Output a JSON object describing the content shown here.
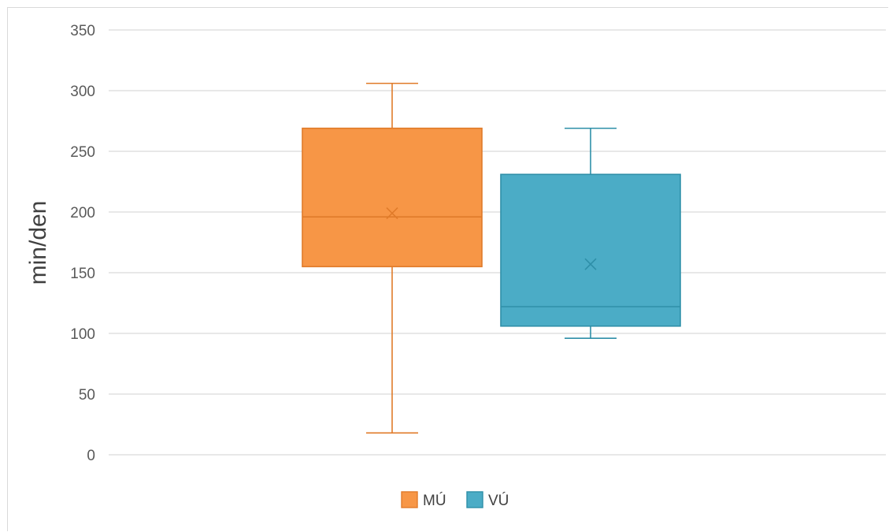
{
  "chart_data": {
    "type": "box",
    "title": "",
    "xlabel": "",
    "ylabel": "min/den",
    "ylim": [
      0,
      350
    ],
    "yticks": [
      0,
      50,
      100,
      150,
      200,
      250,
      300,
      350
    ],
    "grid": true,
    "legend_position": "bottom",
    "series": [
      {
        "name": "MÚ",
        "color": "#F79646",
        "stroke": "#E07B2A",
        "min": 18,
        "q1": 155,
        "median": 196,
        "q3": 269,
        "max": 306,
        "mean": 199
      },
      {
        "name": "VÚ",
        "color": "#4BACC6",
        "stroke": "#2E8FA8",
        "min": 96,
        "q1": 106,
        "median": 122,
        "q3": 231,
        "max": 269,
        "mean": 157
      }
    ]
  }
}
